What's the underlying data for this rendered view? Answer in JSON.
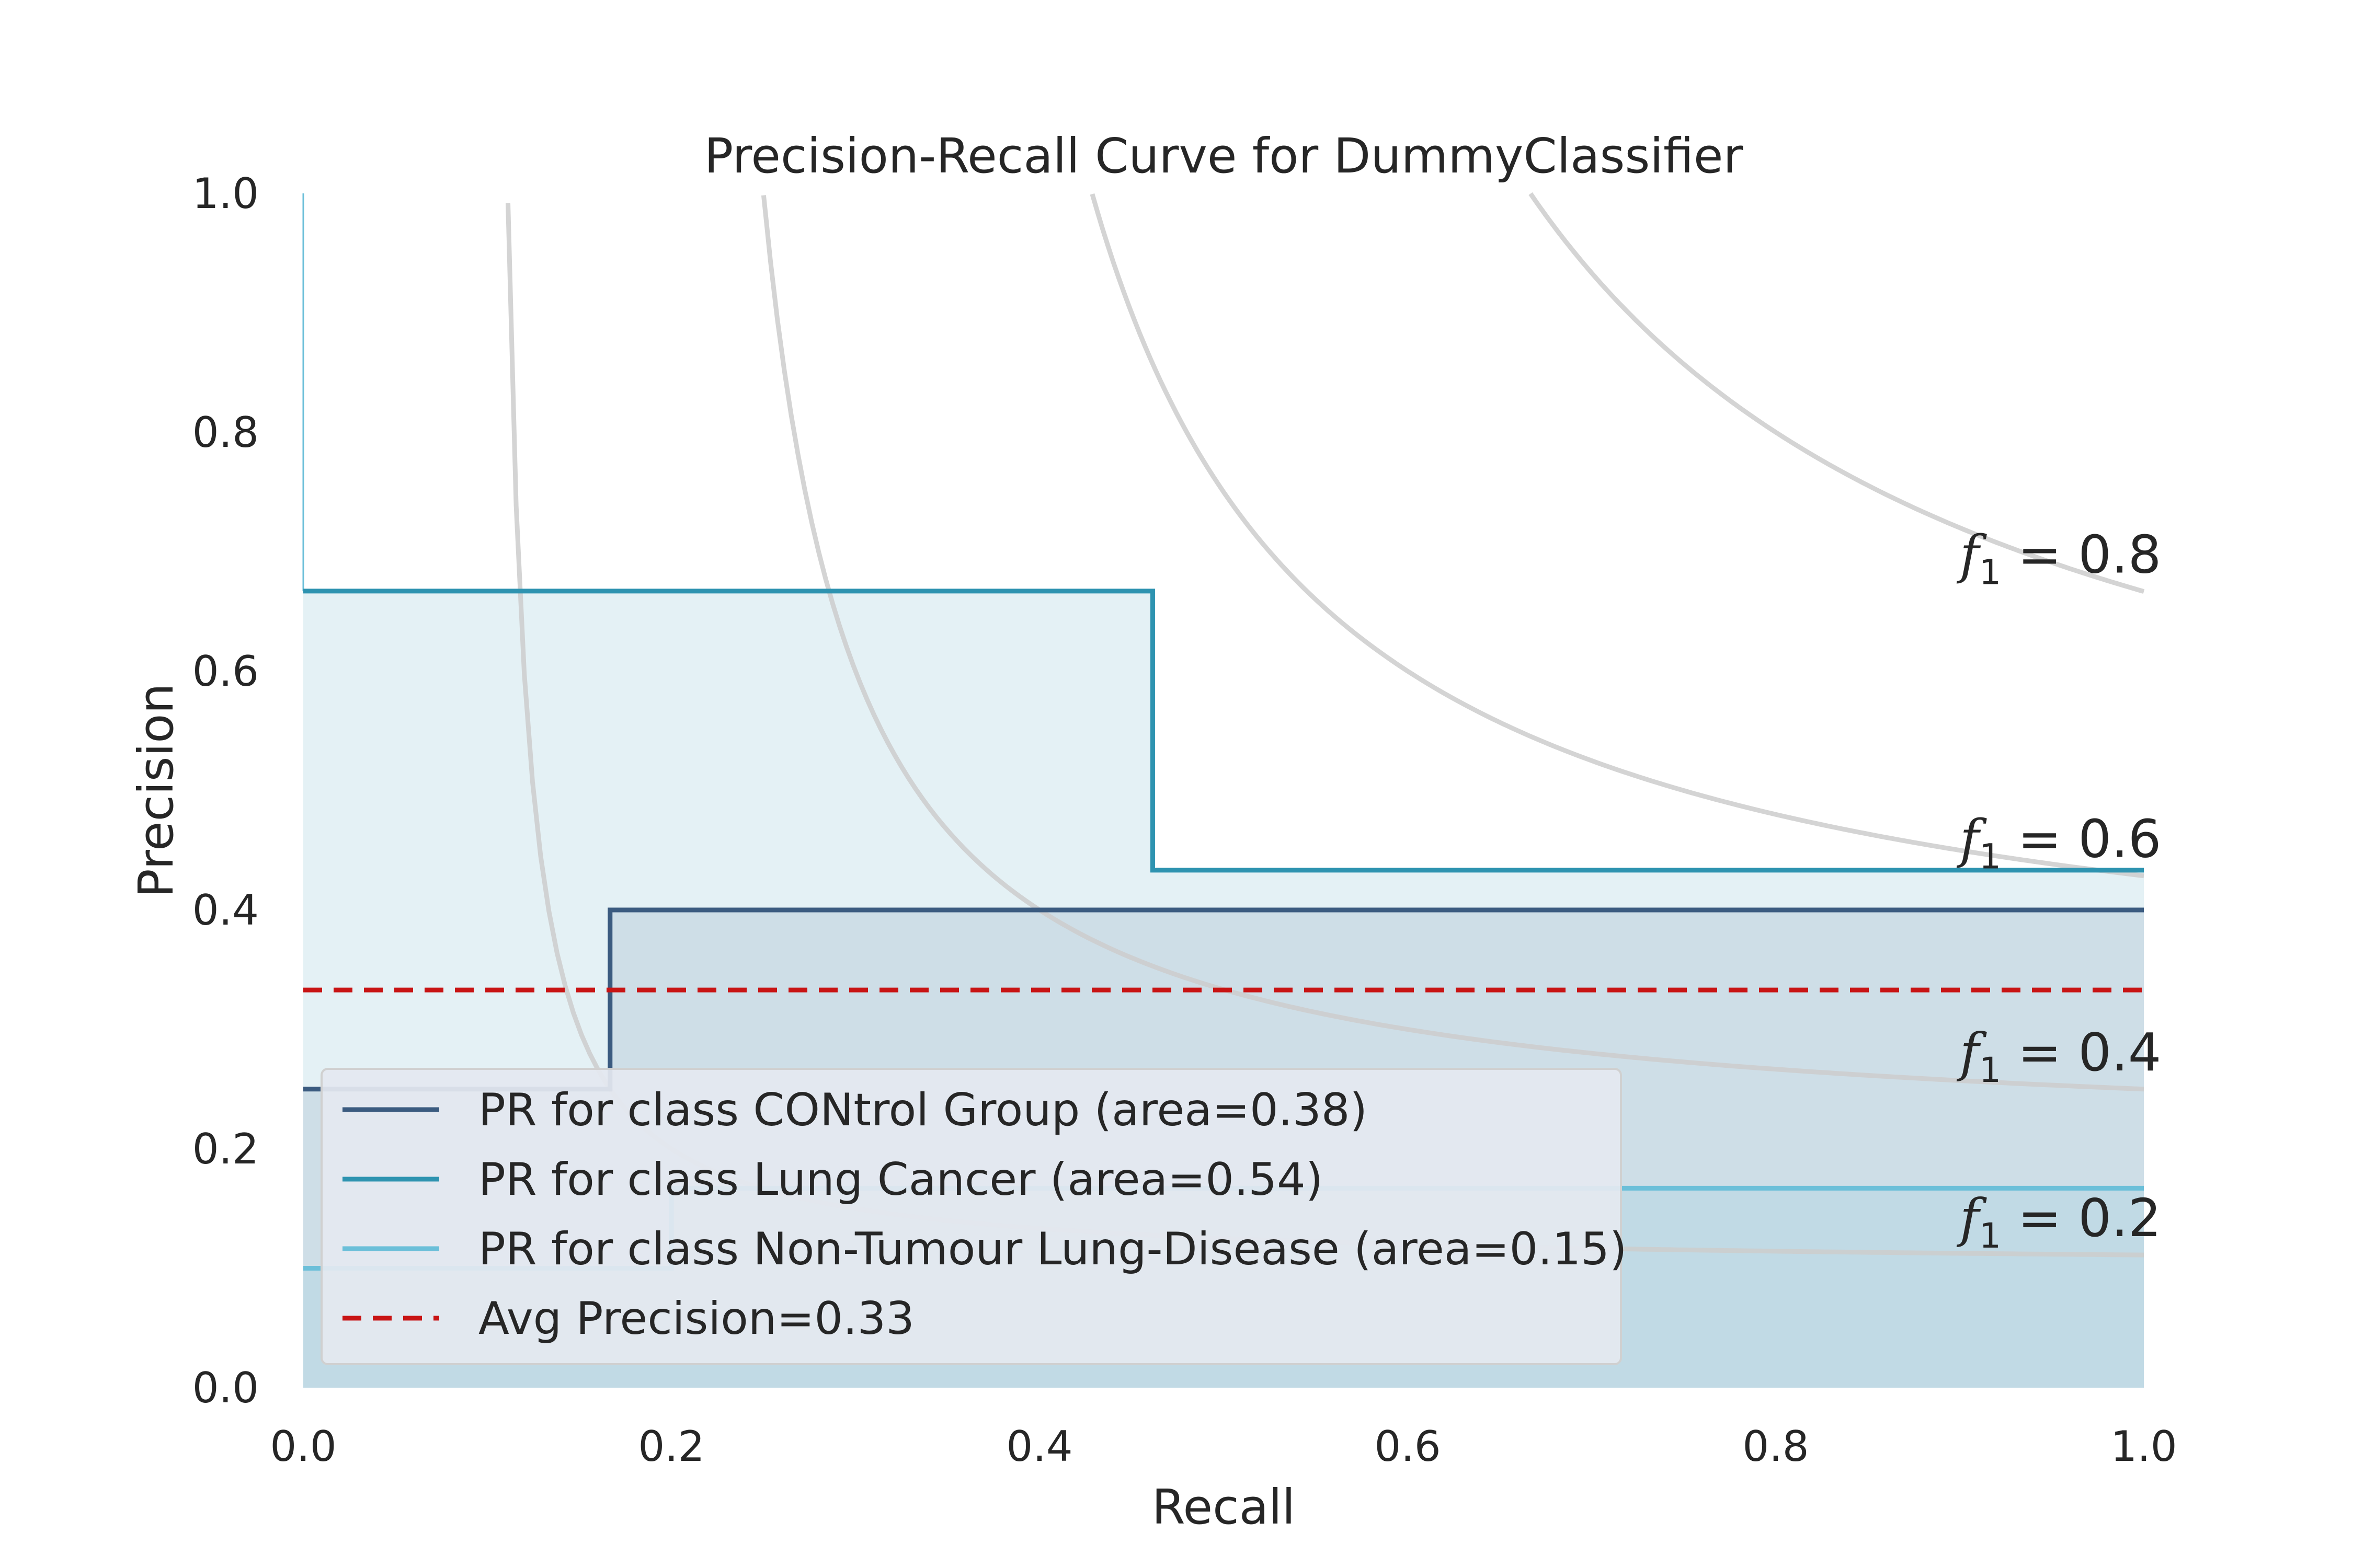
{
  "chart_data": {
    "type": "line",
    "title": "Precision-Recall Curve for DummyClassifier",
    "xlabel": "Recall",
    "ylabel": "Precision",
    "xlim": [
      0.0,
      1.0
    ],
    "ylim": [
      0.0,
      1.0
    ],
    "x_ticks": [
      "0.0",
      "0.2",
      "0.4",
      "0.6",
      "0.8",
      "1.0"
    ],
    "y_ticks": [
      "0.0",
      "0.2",
      "0.4",
      "0.6",
      "0.8",
      "1.0"
    ],
    "grid": false,
    "legend_position": "lower-left",
    "series": [
      {
        "name": "PR for class CONtrol Group (area=0.38)",
        "color": "#3b5b80",
        "fill": "#3b5b80",
        "step": true,
        "points": [
          [
            0.0,
            0.25
          ],
          [
            0.1667,
            0.25
          ],
          [
            0.1667,
            0.4
          ],
          [
            1.0,
            0.4
          ]
        ]
      },
      {
        "name": "PR for class Lung Cancer (area=0.54)",
        "color": "#2e93b0",
        "fill": "#2e93b0",
        "step": true,
        "points": [
          [
            0.0,
            0.667
          ],
          [
            0.4615,
            0.667
          ],
          [
            0.4615,
            0.4333
          ],
          [
            1.0,
            0.4333
          ]
        ]
      },
      {
        "name": "PR for class Non-Tumour Lung-Disease (area=0.15)",
        "color": "#6bbfd9",
        "fill": "#6bbfd9",
        "step": true,
        "points": [
          [
            0.0,
            0.1
          ],
          [
            0.2,
            0.1
          ],
          [
            0.2,
            0.167
          ],
          [
            1.0,
            0.167
          ]
        ]
      }
    ],
    "avg_precision": {
      "name": "Avg Precision=0.33",
      "value": 0.333,
      "color": "#c81414"
    },
    "iso_f1": [
      {
        "f1": 0.2,
        "label_main": "f",
        "label_sub": "1",
        "label_rest": " = 0.2"
      },
      {
        "f1": 0.4,
        "label_main": "f",
        "label_sub": "1",
        "label_rest": " = 0.4"
      },
      {
        "f1": 0.6,
        "label_main": "f",
        "label_sub": "1",
        "label_rest": " = 0.6"
      },
      {
        "f1": 0.8,
        "label_main": "f",
        "label_sub": "1",
        "label_rest": " = 0.8"
      }
    ],
    "iso_color": "#cccccc"
  }
}
